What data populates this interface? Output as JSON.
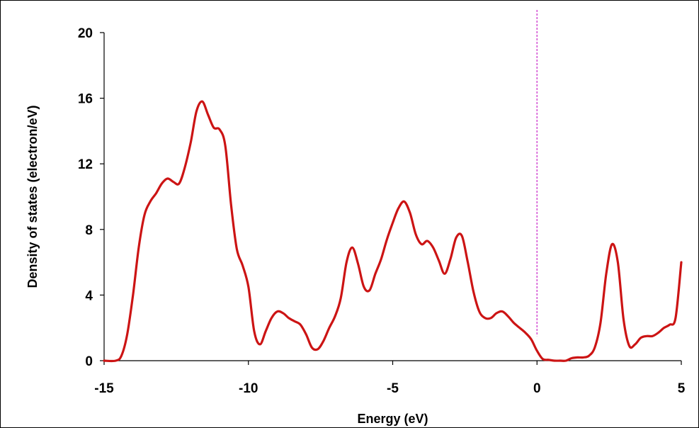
{
  "chart_data": {
    "type": "line",
    "title": "",
    "xlabel": "Energy (eV)",
    "ylabel": "Density of states (electron/eV)",
    "xlim": [
      -15,
      5
    ],
    "ylim": [
      0,
      20
    ],
    "xticks": [
      -15,
      -10,
      -5,
      0,
      5
    ],
    "yticks": [
      0,
      4,
      8,
      12,
      16,
      20
    ],
    "xtick_labels": [
      "-15",
      "-10",
      "-5",
      "0",
      "5"
    ],
    "ytick_labels": [
      "0",
      "4",
      "8",
      "12",
      "16",
      "20"
    ],
    "grid": false,
    "legend": "none",
    "fermi_level": 0,
    "series": [
      {
        "color": "#cc1414",
        "x": [
          -15.0,
          -14.6,
          -14.4,
          -14.2,
          -14.0,
          -13.8,
          -13.6,
          -13.4,
          -13.2,
          -13.0,
          -12.8,
          -12.6,
          -12.4,
          -12.2,
          -12.0,
          -11.8,
          -11.6,
          -11.4,
          -11.2,
          -11.0,
          -10.8,
          -10.6,
          -10.4,
          -10.2,
          -10.0,
          -9.8,
          -9.6,
          -9.4,
          -9.2,
          -9.0,
          -8.8,
          -8.6,
          -8.4,
          -8.2,
          -8.0,
          -7.8,
          -7.6,
          -7.4,
          -7.2,
          -7.0,
          -6.8,
          -6.6,
          -6.4,
          -6.2,
          -6.0,
          -5.8,
          -5.6,
          -5.4,
          -5.2,
          -5.0,
          -4.8,
          -4.6,
          -4.4,
          -4.2,
          -4.0,
          -3.8,
          -3.6,
          -3.4,
          -3.2,
          -3.0,
          -2.8,
          -2.6,
          -2.4,
          -2.2,
          -2.0,
          -1.8,
          -1.6,
          -1.4,
          -1.2,
          -1.0,
          -0.8,
          -0.6,
          -0.4,
          -0.2,
          0.0,
          0.2,
          0.4,
          0.6,
          0.8,
          1.0,
          1.2,
          1.4,
          1.6,
          1.8,
          2.0,
          2.2,
          2.4,
          2.6,
          2.8,
          3.0,
          3.2,
          3.4,
          3.6,
          3.8,
          4.0,
          4.2,
          4.4,
          4.6,
          4.8,
          5.0
        ],
        "y": [
          0.0,
          0.0,
          0.3,
          1.6,
          4.0,
          6.9,
          8.9,
          9.7,
          10.2,
          10.8,
          11.1,
          10.9,
          10.8,
          11.8,
          13.3,
          15.2,
          15.8,
          15.0,
          14.2,
          14.1,
          13.1,
          9.5,
          6.8,
          5.8,
          4.5,
          1.8,
          1.0,
          1.8,
          2.6,
          3.0,
          2.9,
          2.6,
          2.4,
          2.2,
          1.6,
          0.8,
          0.7,
          1.2,
          2.0,
          2.7,
          3.8,
          6.0,
          6.9,
          5.9,
          4.5,
          4.3,
          5.3,
          6.2,
          7.4,
          8.4,
          9.3,
          9.7,
          9.0,
          7.7,
          7.1,
          7.3,
          6.9,
          6.1,
          5.3,
          6.2,
          7.5,
          7.6,
          6.0,
          4.2,
          3.0,
          2.6,
          2.6,
          2.9,
          3.0,
          2.7,
          2.3,
          2.0,
          1.7,
          1.3,
          0.6,
          0.1,
          0.05,
          0.0,
          0.0,
          0.0,
          0.15,
          0.2,
          0.2,
          0.3,
          0.8,
          2.3,
          5.3,
          7.1,
          6.0,
          2.5,
          0.9,
          1.0,
          1.4,
          1.5,
          1.5,
          1.7,
          2.0,
          2.2,
          2.6,
          6.0
        ]
      }
    ]
  }
}
